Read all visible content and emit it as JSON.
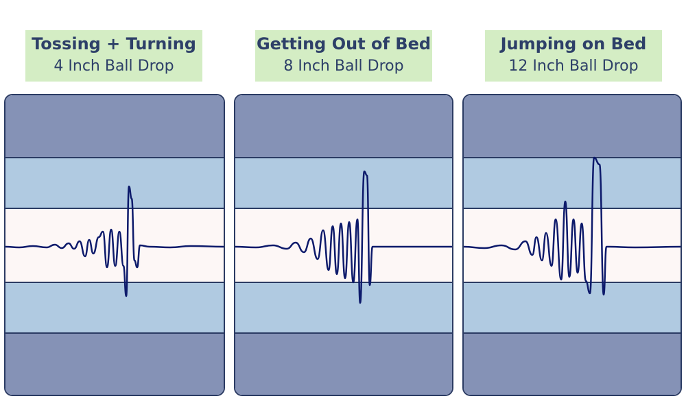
{
  "colors": {
    "label_bg": "#d4edc4",
    "label_text": "#2d3f68",
    "outer_band": "#8592b6",
    "mid_band": "#b0cae1",
    "center_band": "#fdf7f6",
    "border": "#2b3b63",
    "wave": "#0d1a6b"
  },
  "panels": [
    {
      "title": "Tossing + Turning",
      "subtitle": "4 Inch Ball Drop",
      "wave_amplitude_scale": 1.0
    },
    {
      "title": "Getting Out of Bed",
      "subtitle": "8 Inch Ball Drop",
      "wave_amplitude_scale": 1.35
    },
    {
      "title": "Jumping on Bed",
      "subtitle": "12 Inch Ball Drop",
      "wave_amplitude_scale": 1.6
    }
  ]
}
